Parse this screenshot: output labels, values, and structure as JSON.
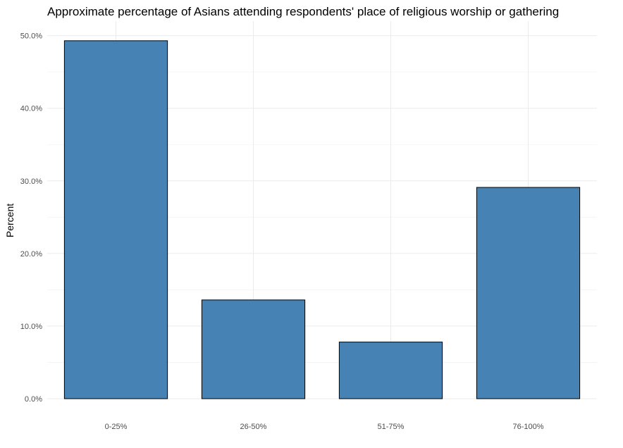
{
  "chart_data": {
    "type": "bar",
    "title": "Approximate percentage of Asians attending respondents' place of religious worship or gathering",
    "xlabel": "",
    "ylabel": "Percent",
    "categories": [
      "0-25%",
      "26-50%",
      "51-75%",
      "76-100%"
    ],
    "values": [
      49.3,
      13.6,
      7.8,
      29.1
    ],
    "ylim": [
      0,
      52
    ],
    "yticks": [
      0,
      10,
      20,
      30,
      40,
      50
    ],
    "ytick_labels": [
      "0.0%",
      "10.0%",
      "20.0%",
      "30.0%",
      "40.0%",
      "50.0%"
    ],
    "grid": true,
    "legend": "none",
    "bar_color": "#4682B4",
    "bar_outline": "#000000"
  }
}
